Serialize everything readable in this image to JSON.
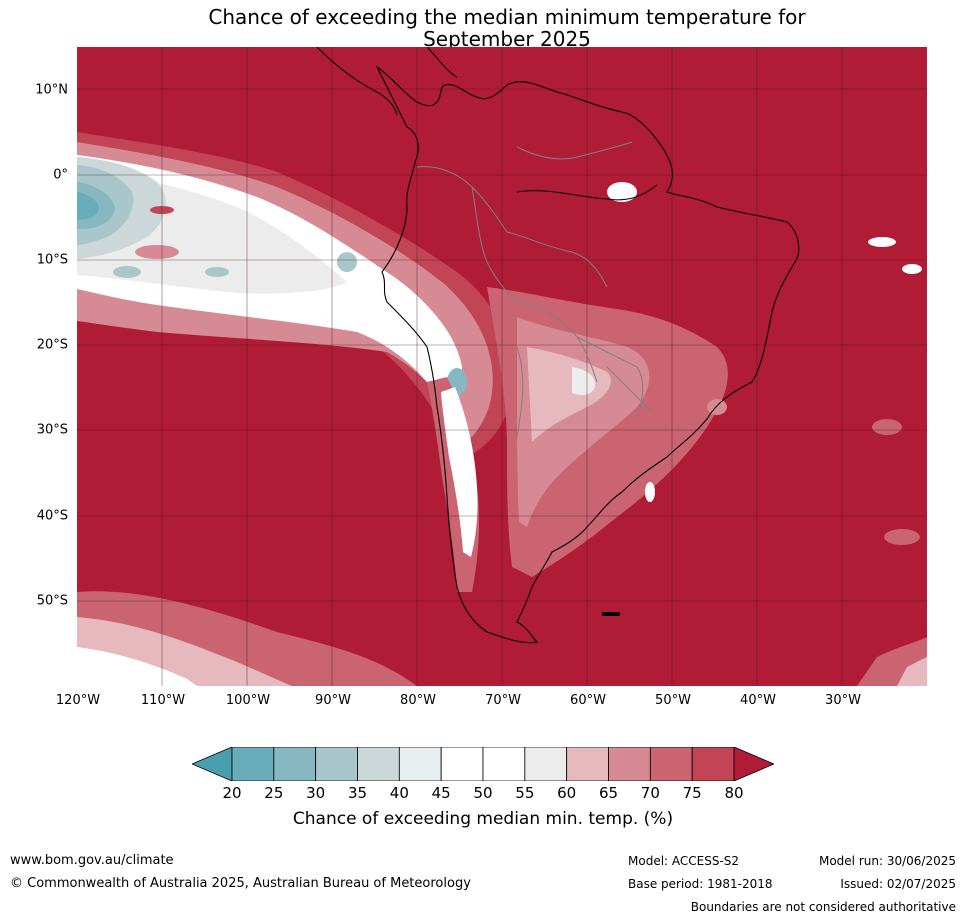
{
  "title": {
    "line1": "Chance of exceeding the median minimum temperature for",
    "line2": "September 2025"
  },
  "map": {
    "lat_labels": [
      "10°N",
      "0°",
      "10°S",
      "20°S",
      "30°S",
      "40°S",
      "50°S"
    ],
    "lat_values": [
      10,
      0,
      -10,
      -20,
      -30,
      -40,
      -50
    ],
    "lon_labels": [
      "120°W",
      "110°W",
      "100°W",
      "90°W",
      "80°W",
      "70°W",
      "60°W",
      "50°W",
      "40°W",
      "30°W"
    ],
    "lon_values": [
      -120,
      -110,
      -100,
      -90,
      -80,
      -70,
      -60,
      -50,
      -40,
      -30
    ],
    "extent": {
      "lon_min": -120,
      "lon_max": -20,
      "lat_min": -60,
      "lat_max": 15
    },
    "colors": {
      "background": "#b01b35",
      "band_75_80": "#c24555",
      "band_70_75": "#c96470",
      "band_65_70": "#d68a93",
      "band_60_65": "#e5b9be",
      "band_55_60": "#ececec",
      "band_45_55": "#ffffff",
      "band_40_45": "#e8eff1",
      "band_35_40": "#ccd7d9",
      "band_30_35": "#a9c7ca",
      "band_25_30": "#87b7c1",
      "band_20_25": "#67adba",
      "coast": "#000000",
      "border": "#808080"
    }
  },
  "colorbar": {
    "ticks": [
      "20",
      "25",
      "30",
      "35",
      "40",
      "45",
      "50",
      "55",
      "60",
      "65",
      "70",
      "75",
      "80"
    ],
    "colors": [
      "#67adba",
      "#87b7c1",
      "#a9c7ca",
      "#ccd7d9",
      "#e8eff1",
      "#ffffff",
      "#ffffff",
      "#ececec",
      "#e5b9be",
      "#d68a93",
      "#c96470",
      "#c24555"
    ],
    "under_color": "#4a9fae",
    "over_color": "#b01b35",
    "label": "Chance of exceeding median min. temp. (%)"
  },
  "footer": {
    "website": "www.bom.gov.au/climate",
    "copyright": "© Commonwealth of Australia 2025, Australian Bureau of Meteorology",
    "model": "Model: ACCESS-S2",
    "base_period": "Base period: 1981-2018",
    "model_run": "Model run: 30/06/2025",
    "issued": "Issued: 02/07/2025",
    "disclaimer": "Boundaries are not considered authoritative"
  }
}
